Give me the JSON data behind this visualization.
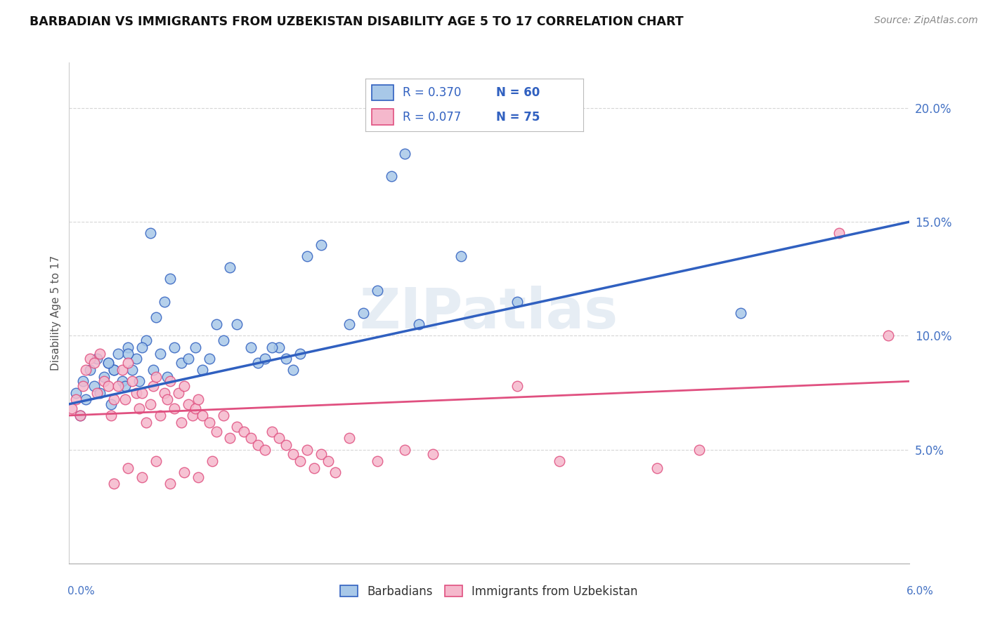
{
  "title": "BARBADIAN VS IMMIGRANTS FROM UZBEKISTAN DISABILITY AGE 5 TO 17 CORRELATION CHART",
  "source": "Source: ZipAtlas.com",
  "ylabel": "Disability Age 5 to 17",
  "xmin": 0.0,
  "xmax": 6.0,
  "ymin": 0.0,
  "ymax": 22.0,
  "yticks": [
    5.0,
    10.0,
    15.0,
    20.0
  ],
  "ytick_labels": [
    "5.0%",
    "10.0%",
    "15.0%",
    "20.0%"
  ],
  "blue_R": 0.37,
  "blue_N": 60,
  "pink_R": 0.077,
  "pink_N": 75,
  "blue_color": "#a8c8e8",
  "pink_color": "#f5b8cc",
  "blue_line_color": "#3060c0",
  "pink_line_color": "#e05080",
  "legend_blue_label": "Barbadians",
  "legend_pink_label": "Immigrants from Uzbekistan",
  "watermark": "ZIPatlas",
  "blue_trend_x0": 0.0,
  "blue_trend_y0": 7.0,
  "blue_trend_x1": 6.0,
  "blue_trend_y1": 15.0,
  "pink_trend_x0": 0.0,
  "pink_trend_y0": 6.5,
  "pink_trend_x1": 6.0,
  "pink_trend_y1": 8.0,
  "blue_scatter_x": [
    0.05,
    0.08,
    0.1,
    0.12,
    0.15,
    0.18,
    0.2,
    0.22,
    0.25,
    0.28,
    0.3,
    0.32,
    0.35,
    0.38,
    0.4,
    0.42,
    0.45,
    0.48,
    0.5,
    0.55,
    0.6,
    0.65,
    0.7,
    0.75,
    0.8,
    0.85,
    0.9,
    0.95,
    1.0,
    1.1,
    1.2,
    1.3,
    1.35,
    1.4,
    1.5,
    1.6,
    1.65,
    1.7,
    1.8,
    2.0,
    2.1,
    2.2,
    2.3,
    2.4,
    2.5,
    2.8,
    1.15,
    0.58,
    0.72,
    0.62,
    0.52,
    0.68,
    1.05,
    1.55,
    1.45,
    0.42,
    0.32,
    0.28,
    3.2,
    4.8
  ],
  "blue_scatter_y": [
    7.5,
    6.5,
    8.0,
    7.2,
    8.5,
    7.8,
    9.0,
    7.5,
    8.2,
    8.8,
    7.0,
    8.5,
    9.2,
    8.0,
    7.8,
    9.5,
    8.5,
    9.0,
    8.0,
    9.8,
    8.5,
    9.2,
    8.2,
    9.5,
    8.8,
    9.0,
    9.5,
    8.5,
    9.0,
    9.8,
    10.5,
    9.5,
    8.8,
    9.0,
    9.5,
    8.5,
    9.2,
    13.5,
    14.0,
    10.5,
    11.0,
    12.0,
    17.0,
    18.0,
    10.5,
    13.5,
    13.0,
    14.5,
    12.5,
    10.8,
    9.5,
    11.5,
    10.5,
    9.0,
    9.5,
    9.2,
    8.5,
    8.8,
    11.5,
    11.0
  ],
  "pink_scatter_x": [
    0.02,
    0.05,
    0.08,
    0.1,
    0.12,
    0.15,
    0.18,
    0.2,
    0.22,
    0.25,
    0.28,
    0.3,
    0.32,
    0.35,
    0.38,
    0.4,
    0.42,
    0.45,
    0.48,
    0.5,
    0.52,
    0.55,
    0.58,
    0.6,
    0.62,
    0.65,
    0.68,
    0.7,
    0.72,
    0.75,
    0.78,
    0.8,
    0.82,
    0.85,
    0.88,
    0.9,
    0.92,
    0.95,
    1.0,
    1.05,
    1.1,
    1.15,
    1.2,
    1.25,
    1.3,
    1.35,
    1.4,
    1.45,
    1.5,
    1.55,
    1.6,
    1.65,
    1.7,
    1.75,
    1.8,
    1.85,
    1.9,
    2.0,
    2.2,
    2.4,
    2.6,
    3.2,
    3.5,
    4.2,
    4.5,
    5.5,
    5.85,
    0.32,
    0.42,
    0.52,
    0.62,
    0.72,
    0.82,
    0.92,
    1.02
  ],
  "pink_scatter_y": [
    6.8,
    7.2,
    6.5,
    7.8,
    8.5,
    9.0,
    8.8,
    7.5,
    9.2,
    8.0,
    7.8,
    6.5,
    7.2,
    7.8,
    8.5,
    7.2,
    8.8,
    8.0,
    7.5,
    6.8,
    7.5,
    6.2,
    7.0,
    7.8,
    8.2,
    6.5,
    7.5,
    7.2,
    8.0,
    6.8,
    7.5,
    6.2,
    7.8,
    7.0,
    6.5,
    6.8,
    7.2,
    6.5,
    6.2,
    5.8,
    6.5,
    5.5,
    6.0,
    5.8,
    5.5,
    5.2,
    5.0,
    5.8,
    5.5,
    5.2,
    4.8,
    4.5,
    5.0,
    4.2,
    4.8,
    4.5,
    4.0,
    5.5,
    4.5,
    5.0,
    4.8,
    7.8,
    4.5,
    4.2,
    5.0,
    14.5,
    10.0,
    3.5,
    4.2,
    3.8,
    4.5,
    3.5,
    4.0,
    3.8,
    4.5
  ]
}
